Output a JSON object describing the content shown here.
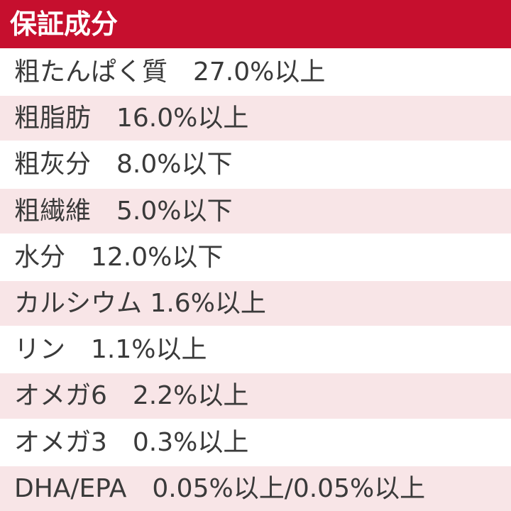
{
  "header": {
    "title": "保証成分"
  },
  "table": {
    "rows": [
      "粗たんぱく質　27.0%以上",
      "粗脂肪　16.0%以上",
      "粗灰分　8.0%以下",
      "粗繊維　5.0%以下",
      "水分　12.0%以下",
      "カルシウム 1.6%以上",
      "リン　1.1%以上",
      "オメガ6　2.2%以上",
      "オメガ3　0.3%以上",
      "DHA/EPA　0.05%以上/0.05%以上"
    ]
  }
}
